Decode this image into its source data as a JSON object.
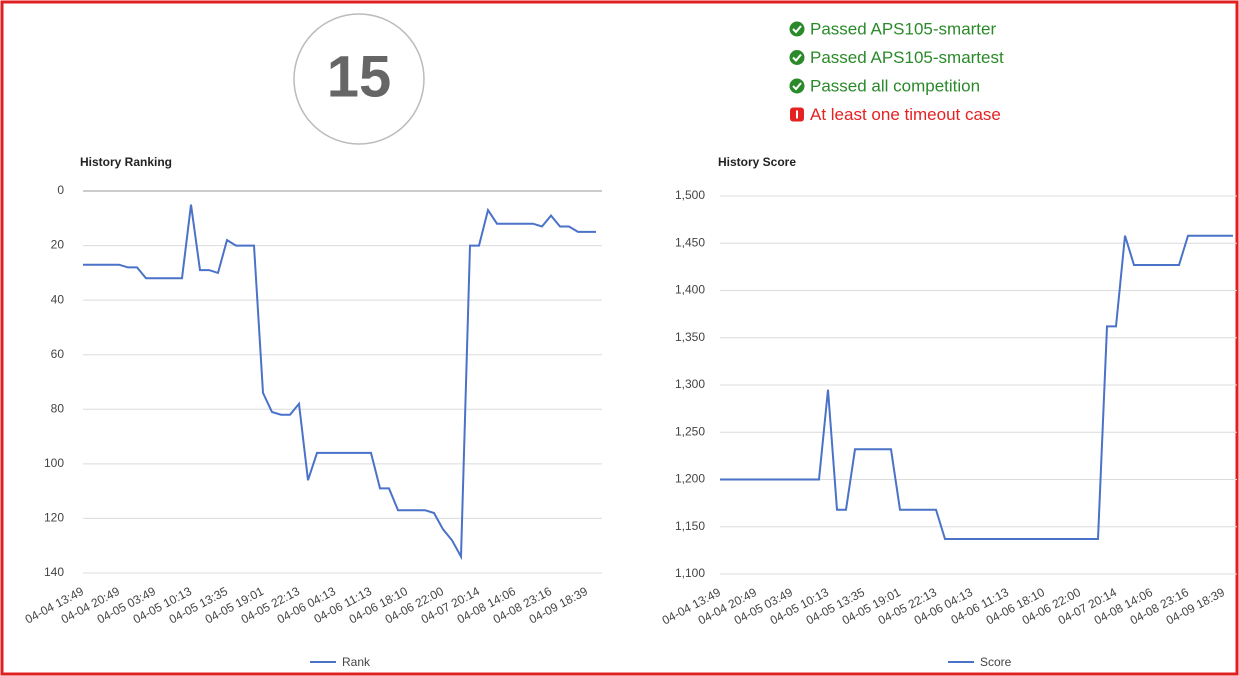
{
  "badge": "15",
  "status": [
    {
      "text": "Passed APS105-smarter",
      "state": "pass"
    },
    {
      "text": "Passed APS105-smartest",
      "state": "pass"
    },
    {
      "text": "Passed all competition",
      "state": "pass"
    },
    {
      "text": "At least one timeout case",
      "state": "fail"
    }
  ],
  "chart_data": [
    {
      "type": "line",
      "title": "History Ranking",
      "reversed": true,
      "grid": true,
      "ylim": [
        0,
        140
      ],
      "yticks": [
        0,
        20,
        40,
        60,
        80,
        100,
        120,
        140
      ],
      "categories": [
        "04-04 13:49",
        null,
        null,
        null,
        "04-04 20:49",
        null,
        null,
        null,
        "04-05 03:49",
        null,
        null,
        null,
        "04-05 10:13",
        null,
        null,
        null,
        "04-05 13:35",
        null,
        null,
        null,
        "04-05 19:01",
        null,
        null,
        null,
        "04-05 22:13",
        null,
        null,
        null,
        "04-06 04:13",
        null,
        null,
        null,
        "04-06 11:13",
        null,
        null,
        null,
        "04-06 18:10",
        null,
        null,
        null,
        "04-06 22:00",
        null,
        null,
        null,
        "04-07 20:14",
        null,
        null,
        null,
        "04-08 14:06",
        null,
        null,
        null,
        "04-08 23:16",
        null,
        null,
        null,
        "04-09 18:39",
        null
      ],
      "series": [
        {
          "name": "Rank",
          "color": "#4a72c8",
          "values": [
            27,
            27,
            27,
            27,
            27,
            28,
            28,
            32,
            32,
            32,
            32,
            32,
            5,
            29,
            29,
            30,
            18,
            20,
            20,
            20,
            74,
            81,
            82,
            82,
            78,
            106,
            96,
            96,
            96,
            96,
            96,
            96,
            96,
            109,
            109,
            117,
            117,
            117,
            117,
            118,
            124,
            128,
            134,
            20,
            20,
            7,
            12,
            12,
            12,
            12,
            12,
            13,
            9,
            13,
            13,
            15,
            15,
            15
          ]
        }
      ]
    },
    {
      "type": "line",
      "title": "History Score",
      "reversed": false,
      "grid": true,
      "ylim": [
        1100,
        1500
      ],
      "yticks": [
        {
          "value": 1100,
          "label": "1,100"
        },
        {
          "value": 1150,
          "label": "1,150"
        },
        {
          "value": 1200,
          "label": "1,200"
        },
        {
          "value": 1250,
          "label": "1,250"
        },
        {
          "value": 1300,
          "label": "1,300"
        },
        {
          "value": 1350,
          "label": "1,350"
        },
        {
          "value": 1400,
          "label": "1,400"
        },
        {
          "value": 1450,
          "label": "1,450"
        },
        {
          "value": 1500,
          "label": "1,500"
        }
      ],
      "categories": [
        "04-04 13:49",
        null,
        null,
        null,
        "04-04 20:49",
        null,
        null,
        null,
        "04-05 03:49",
        null,
        null,
        null,
        "04-05 10:13",
        null,
        null,
        null,
        "04-05 13:35",
        null,
        null,
        null,
        "04-05 19:01",
        null,
        null,
        null,
        "04-05 22:13",
        null,
        null,
        null,
        "04-06 04:13",
        null,
        null,
        null,
        "04-06 11:13",
        null,
        null,
        null,
        "04-06 18:10",
        null,
        null,
        null,
        "04-06 22:00",
        null,
        null,
        null,
        "04-07 20:14",
        null,
        null,
        null,
        "04-08 14:06",
        null,
        null,
        null,
        "04-08 23:16",
        null,
        null,
        null,
        "04-09 18:39",
        null
      ],
      "series": [
        {
          "name": "Score",
          "color": "#4a72c8",
          "values": [
            1200,
            1200,
            1200,
            1200,
            1200,
            1200,
            1200,
            1200,
            1200,
            1200,
            1200,
            1200,
            1295,
            1168,
            1168,
            1232,
            1232,
            1232,
            1232,
            1232,
            1168,
            1168,
            1168,
            1168,
            1168,
            1137,
            1137,
            1137,
            1137,
            1137,
            1137,
            1137,
            1137,
            1137,
            1137,
            1137,
            1137,
            1137,
            1137,
            1137,
            1137,
            1137,
            1137,
            1362,
            1362,
            1458,
            1427,
            1427,
            1427,
            1427,
            1427,
            1427,
            1458,
            1458,
            1458,
            1458,
            1458,
            1458
          ]
        }
      ]
    }
  ]
}
